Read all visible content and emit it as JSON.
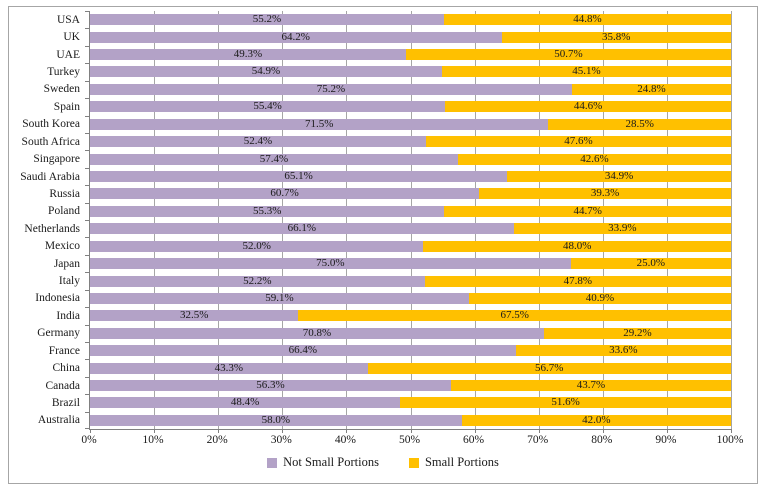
{
  "chart_data": {
    "type": "bar",
    "orientation": "horizontal",
    "stacked": true,
    "title": "",
    "xlabel": "",
    "ylabel": "",
    "xlim": [
      0,
      100
    ],
    "grid": "vertical",
    "legend_position": "bottom",
    "value_label_format": "{value}%",
    "categories": [
      "USA",
      "UK",
      "UAE",
      "Turkey",
      "Sweden",
      "Spain",
      "South Korea",
      "South Africa",
      "Singapore",
      "Saudi Arabia",
      "Russia",
      "Poland",
      "Netherlands",
      "Mexico",
      "Japan",
      "Italy",
      "Indonesia",
      "India",
      "Germany",
      "France",
      "China",
      "Canada",
      "Brazil",
      "Australia"
    ],
    "series": [
      {
        "name": "Not Small Portions",
        "color": "#b3a2c7",
        "values": [
          55.2,
          64.2,
          49.3,
          54.9,
          75.2,
          55.4,
          71.5,
          52.4,
          57.4,
          65.1,
          60.7,
          55.3,
          66.1,
          52.0,
          75.0,
          52.2,
          59.1,
          32.5,
          70.8,
          66.4,
          43.3,
          56.3,
          48.4,
          58.0
        ]
      },
      {
        "name": "Small Portions",
        "color": "#ffc000",
        "values": [
          44.8,
          35.8,
          50.7,
          45.1,
          24.8,
          44.6,
          28.5,
          47.6,
          42.6,
          34.9,
          39.3,
          44.7,
          33.9,
          48.0,
          25.0,
          47.8,
          40.9,
          67.5,
          29.2,
          33.6,
          56.7,
          43.7,
          51.6,
          42.0
        ]
      }
    ],
    "x_ticks": [
      "0%",
      "10%",
      "20%",
      "30%",
      "40%",
      "50%",
      "60%",
      "70%",
      "80%",
      "90%",
      "100%"
    ],
    "colors": {
      "gridline": "#a6a6a6",
      "axis": "#808080",
      "frame_border": "#a6a6a6",
      "text": "#1a1a1a",
      "background": "#ffffff"
    }
  }
}
